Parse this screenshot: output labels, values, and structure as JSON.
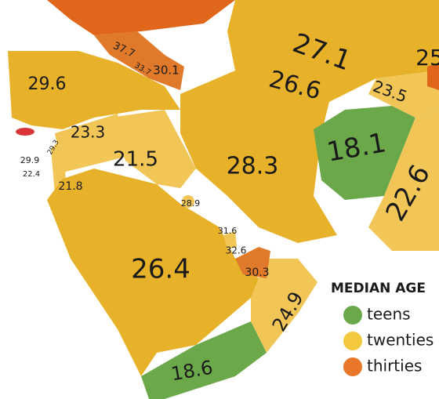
{
  "map": {
    "labels": [
      37.7,
      33.7,
      30.1,
      27.1,
      25,
      29.6,
      26.6,
      23.5,
      23.3,
      29.3,
      29.9,
      22.4,
      21.5,
      28.3,
      18.1,
      22.6,
      21.8,
      28.9,
      31.6,
      32.6,
      30.3,
      26.4,
      24.9,
      18.6
    ],
    "legend": {
      "title": "MEDIAN AGE",
      "items": [
        "teens",
        "twenties",
        "thirties"
      ]
    }
  }
}
